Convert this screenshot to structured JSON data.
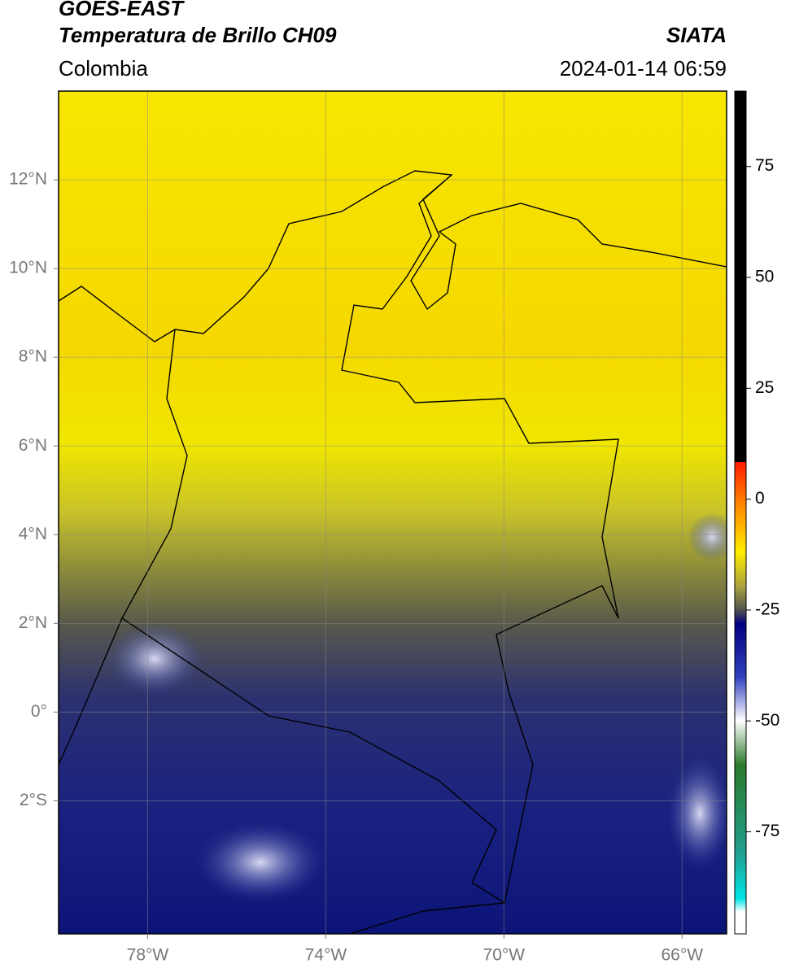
{
  "header": {
    "satellite": "GOES-EAST",
    "product": "Temperatura de Brillo CH09",
    "source": "SIATA",
    "region": "Colombia",
    "datetime": "2024-01-14 06:59"
  },
  "map": {
    "lon_range": [
      -80,
      -65
    ],
    "lat_range": [
      -5,
      14
    ],
    "lon_ticks": [
      {
        "value": -78,
        "label": "78°W"
      },
      {
        "value": -74,
        "label": "74°W"
      },
      {
        "value": -70,
        "label": "70°W"
      },
      {
        "value": -66,
        "label": "66°W"
      }
    ],
    "lat_ticks": [
      {
        "value": 12,
        "label": "12°N"
      },
      {
        "value": 10,
        "label": "10°N"
      },
      {
        "value": 8,
        "label": "8°N"
      },
      {
        "value": 6,
        "label": "6°N"
      },
      {
        "value": 4,
        "label": "4°N"
      },
      {
        "value": 2,
        "label": "2°N"
      },
      {
        "value": 0,
        "label": "0°"
      },
      {
        "value": -2,
        "label": "2°S"
      }
    ]
  },
  "colorbar": {
    "range": [
      -98,
      92
    ],
    "ticks": [
      75,
      50,
      25,
      0,
      -25,
      -50,
      -75
    ]
  }
}
